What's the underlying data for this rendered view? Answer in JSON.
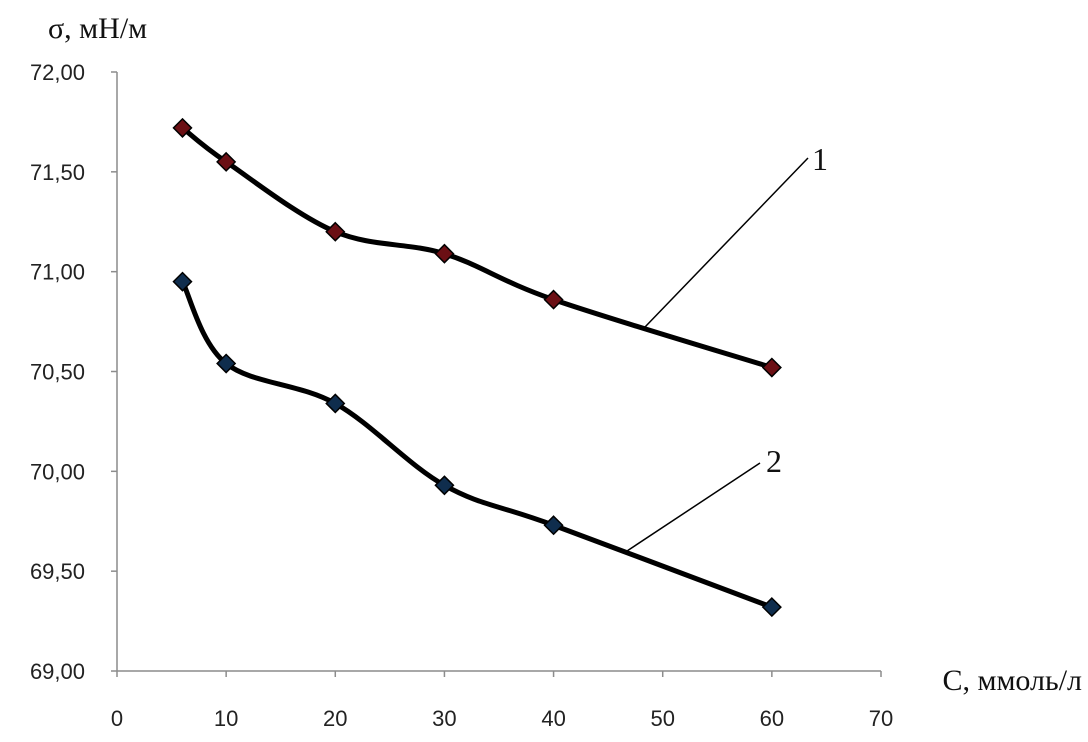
{
  "chart_data": {
    "type": "line",
    "ylabel": "σ, мН/м",
    "xlabel": "С, ммоль/л",
    "xlim": [
      0,
      70
    ],
    "ylim": [
      69.0,
      72.0
    ],
    "x_ticks": [
      "0",
      "10",
      "20",
      "30",
      "40",
      "50",
      "60",
      "70"
    ],
    "y_ticks": [
      "69,00",
      "69,50",
      "70,00",
      "70,50",
      "71,00",
      "71,50",
      "72,00"
    ],
    "grid": false,
    "series": [
      {
        "name": "1",
        "x": [
          6,
          10,
          20,
          30,
          40,
          60
        ],
        "y": [
          71.72,
          71.55,
          71.2,
          71.09,
          70.86,
          70.52
        ],
        "line_color": "#000000",
        "marker_color": "#6b0f14"
      },
      {
        "name": "2",
        "x": [
          6,
          10,
          20,
          30,
          40,
          60
        ],
        "y": [
          70.95,
          70.54,
          70.34,
          69.93,
          69.73,
          69.32
        ],
        "line_color": "#000000",
        "marker_color": "#0f2d4d"
      }
    ]
  }
}
